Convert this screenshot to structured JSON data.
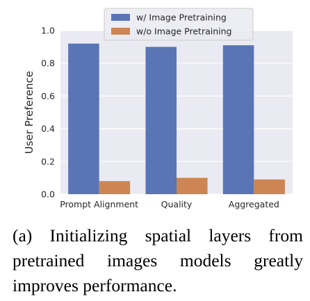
{
  "chart_data": {
    "type": "bar",
    "categories": [
      "Prompt Alignment",
      "Quality",
      "Aggregated"
    ],
    "series": [
      {
        "name": "w/ Image Pretraining",
        "values": [
          0.92,
          0.9,
          0.91
        ],
        "color": "#5975b5"
      },
      {
        "name": "w/o Image Pretraining",
        "values": [
          0.08,
          0.1,
          0.09
        ],
        "color": "#cd8653"
      }
    ],
    "title": "",
    "xlabel": "",
    "ylabel": "User Preference",
    "ylim": [
      0.0,
      1.0
    ],
    "yticks": [
      "0.0",
      "0.2",
      "0.4",
      "0.6",
      "0.8",
      "1.0"
    ],
    "grid": true,
    "background": "#eaeaf2",
    "legend_position": "top-center"
  },
  "caption": "(a)  Initializing spatial layers from pretrained images models greatly improves performance."
}
